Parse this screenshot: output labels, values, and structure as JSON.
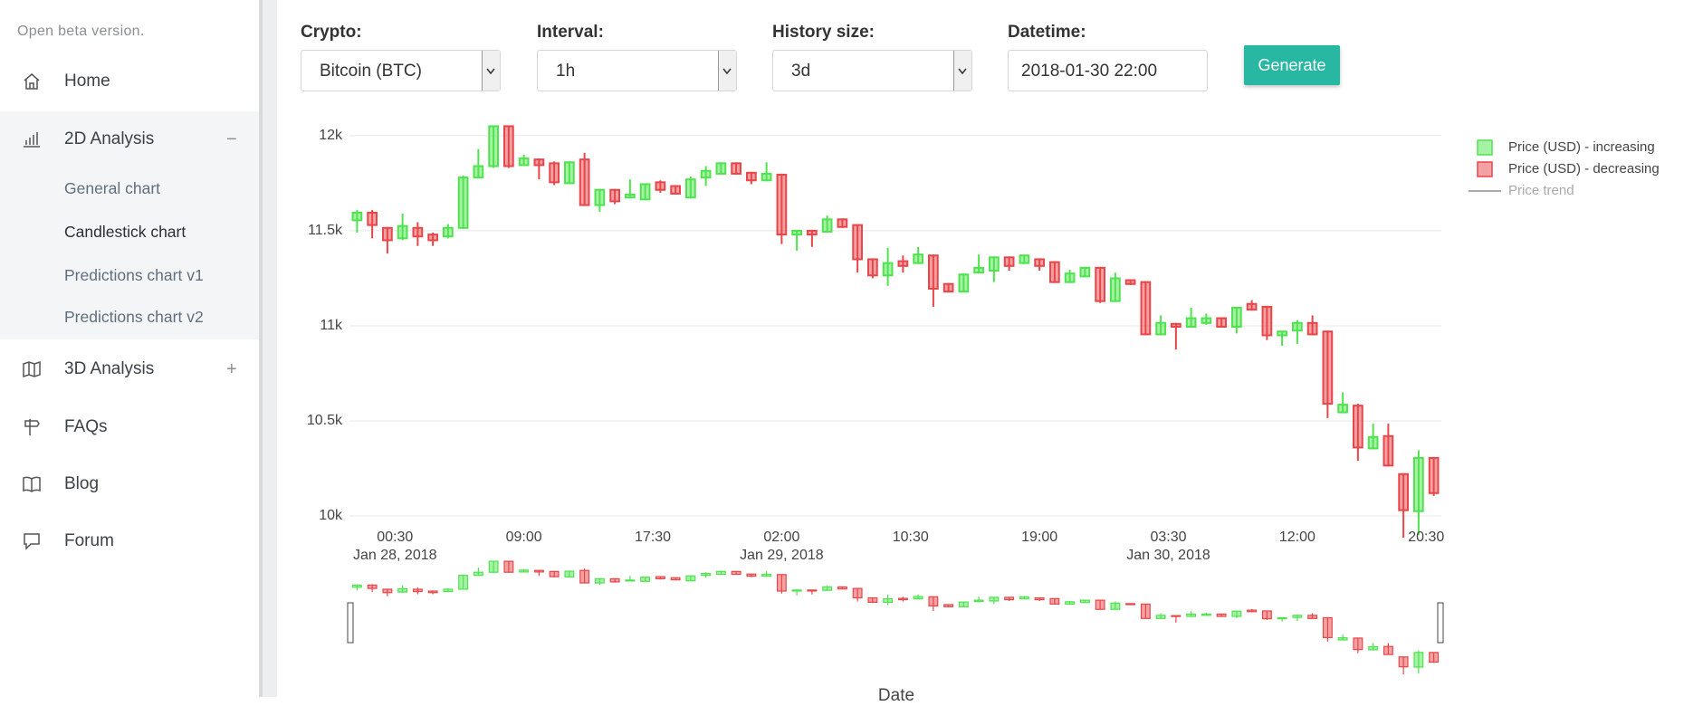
{
  "sidebar": {
    "notice": "Open beta version.",
    "menu": [
      {
        "label": "Home"
      },
      {
        "label": "2D Analysis",
        "toggle": "−",
        "items": [
          "General chart",
          "Candlestick chart",
          "Predictions chart v1",
          "Predictions chart v2"
        ]
      },
      {
        "label": "3D Analysis",
        "toggle": "+"
      },
      {
        "label": "FAQs"
      },
      {
        "label": "Blog"
      },
      {
        "label": "Forum"
      }
    ]
  },
  "form": {
    "fields": [
      {
        "label": "Crypto:",
        "value": "Bitcoin (BTC)"
      },
      {
        "label": "Interval:",
        "value": "1h"
      },
      {
        "label": "History size:",
        "value": "3d"
      },
      {
        "label": "Datetime:",
        "value": "2018-01-30 22:00"
      }
    ],
    "button": "Generate"
  },
  "chart_data": {
    "type": "candlestick",
    "xlabel": "Date",
    "x": [
      "2018-01-27T22:00",
      "2018-01-27T23:00",
      "2018-01-28T00:00",
      "2018-01-28T01:00",
      "2018-01-28T02:00",
      "2018-01-28T03:00",
      "2018-01-28T04:00",
      "2018-01-28T05:00",
      "2018-01-28T06:00",
      "2018-01-28T07:00",
      "2018-01-28T08:00",
      "2018-01-28T09:00",
      "2018-01-28T10:00",
      "2018-01-28T11:00",
      "2018-01-28T12:00",
      "2018-01-28T13:00",
      "2018-01-28T14:00",
      "2018-01-28T15:00",
      "2018-01-28T16:00",
      "2018-01-28T17:00",
      "2018-01-28T18:00",
      "2018-01-28T19:00",
      "2018-01-28T20:00",
      "2018-01-28T21:00",
      "2018-01-28T22:00",
      "2018-01-28T23:00",
      "2018-01-29T00:00",
      "2018-01-29T01:00",
      "2018-01-29T02:00",
      "2018-01-29T03:00",
      "2018-01-29T04:00",
      "2018-01-29T05:00",
      "2018-01-29T06:00",
      "2018-01-29T07:00",
      "2018-01-29T08:00",
      "2018-01-29T09:00",
      "2018-01-29T10:00",
      "2018-01-29T11:00",
      "2018-01-29T12:00",
      "2018-01-29T13:00",
      "2018-01-29T14:00",
      "2018-01-29T15:00",
      "2018-01-29T16:00",
      "2018-01-29T17:00",
      "2018-01-29T18:00",
      "2018-01-29T19:00",
      "2018-01-29T20:00",
      "2018-01-29T21:00",
      "2018-01-29T22:00",
      "2018-01-29T23:00",
      "2018-01-30T00:00",
      "2018-01-30T01:00",
      "2018-01-30T02:00",
      "2018-01-30T03:00",
      "2018-01-30T04:00",
      "2018-01-30T05:00",
      "2018-01-30T06:00",
      "2018-01-30T07:00",
      "2018-01-30T08:00",
      "2018-01-30T09:00",
      "2018-01-30T10:00",
      "2018-01-30T11:00",
      "2018-01-30T12:00",
      "2018-01-30T13:00",
      "2018-01-30T14:00",
      "2018-01-30T15:00",
      "2018-01-30T16:00",
      "2018-01-30T17:00",
      "2018-01-30T18:00",
      "2018-01-30T19:00",
      "2018-01-30T20:00",
      "2018-01-30T21:00"
    ],
    "open": [
      11555,
      11595,
      11515,
      11460,
      11515,
      11480,
      11470,
      11515,
      11780,
      11840,
      12050,
      11845,
      11875,
      11855,
      11750,
      11875,
      11635,
      11715,
      11675,
      11665,
      11755,
      11735,
      11675,
      11780,
      11800,
      11855,
      11805,
      11765,
      11795,
      11480,
      11500,
      11495,
      11560,
      11530,
      11350,
      11265,
      11340,
      11330,
      11370,
      11220,
      11180,
      11280,
      11290,
      11360,
      11330,
      11350,
      11335,
      11230,
      11260,
      11305,
      11130,
      11240,
      11230,
      10955,
      11010,
      10995,
      11015,
      11040,
      10995,
      11115,
      11100,
      10950,
      10975,
      11015,
      10970,
      10545,
      10580,
      10355,
      10420,
      10220,
      10025,
      10305
    ],
    "high": [
      11610,
      11610,
      11520,
      11590,
      11545,
      11490,
      11535,
      11790,
      11930,
      12050,
      12050,
      11900,
      11880,
      11865,
      11865,
      11910,
      11720,
      11720,
      11770,
      11750,
      11765,
      11740,
      11785,
      11840,
      11860,
      11860,
      11810,
      11860,
      11800,
      11505,
      11505,
      11580,
      11565,
      11535,
      11355,
      11410,
      11370,
      11415,
      11375,
      11225,
      11275,
      11375,
      11365,
      11365,
      11375,
      11355,
      11340,
      11295,
      11310,
      11310,
      11280,
      11245,
      11235,
      11055,
      11015,
      11095,
      11065,
      11045,
      11100,
      11135,
      11105,
      10975,
      11030,
      11055,
      10975,
      10650,
      10590,
      10485,
      10485,
      10225,
      10345,
      10310
    ],
    "low": [
      11490,
      11460,
      11380,
      11450,
      11420,
      11420,
      11460,
      11510,
      11775,
      11830,
      11830,
      11840,
      11770,
      11740,
      11745,
      11630,
      11600,
      11640,
      11670,
      11660,
      11700,
      11690,
      11670,
      11735,
      11795,
      11795,
      11745,
      11760,
      11430,
      11395,
      11415,
      11490,
      11515,
      11280,
      11250,
      11210,
      11280,
      11325,
      11100,
      11175,
      11175,
      11275,
      11230,
      11290,
      11325,
      11290,
      11225,
      11225,
      11255,
      11120,
      11125,
      11215,
      10950,
      10950,
      10875,
      10990,
      11005,
      10990,
      10960,
      11080,
      10925,
      10895,
      10905,
      10950,
      10515,
      10540,
      10290,
      10350,
      10260,
      9885,
      9900,
      10105
    ],
    "close": [
      11595,
      11530,
      11450,
      11525,
      11470,
      11450,
      11515,
      11780,
      11840,
      12050,
      11840,
      11880,
      11845,
      11755,
      11860,
      11635,
      11715,
      11655,
      11690,
      11745,
      11715,
      11695,
      11770,
      11815,
      11855,
      11800,
      11765,
      11800,
      11480,
      11500,
      11480,
      11560,
      11520,
      11350,
      11265,
      11330,
      11315,
      11375,
      11195,
      11180,
      11270,
      11305,
      11360,
      11315,
      11370,
      11315,
      11230,
      11275,
      11305,
      11130,
      11250,
      11220,
      10955,
      11015,
      10995,
      11040,
      11040,
      10995,
      11095,
      11085,
      10950,
      10970,
      11015,
      10955,
      10590,
      10585,
      10360,
      10415,
      10265,
      10030,
      10305,
      10120
    ],
    "increasing": {
      "name": "Price (USD) - increasing",
      "color": "#4fe34f"
    },
    "decreasing": {
      "name": "Price (USD) - decreasing",
      "color": "#e8464a"
    },
    "trend": {
      "name": "Price trend",
      "color": "#888888",
      "visible": false
    },
    "xlim": [
      "2018-01-27T21:30",
      "2018-01-30T21:30"
    ],
    "xticks": [
      {
        "value": "2018-01-28T00:30",
        "label": "00:30\nJan 28, 2018"
      },
      {
        "value": "2018-01-28T09:00",
        "label": "09:00"
      },
      {
        "value": "2018-01-28T17:30",
        "label": "17:30"
      },
      {
        "value": "2018-01-29T02:00",
        "label": "02:00\nJan 29, 2018"
      },
      {
        "value": "2018-01-29T10:30",
        "label": "10:30"
      },
      {
        "value": "2018-01-29T19:00",
        "label": "19:00"
      },
      {
        "value": "2018-01-30T03:30",
        "label": "03:30\nJan 30, 2018"
      },
      {
        "value": "2018-01-30T12:00",
        "label": "12:00"
      },
      {
        "value": "2018-01-30T20:30",
        "label": "20:30"
      }
    ],
    "ylim": [
      9800,
      12190
    ],
    "yticks": [
      {
        "value": 10000,
        "label": "10k"
      },
      {
        "value": 10500,
        "label": "10.5k"
      },
      {
        "value": 11000,
        "label": "11k"
      },
      {
        "value": 11500,
        "label": "11.5k"
      },
      {
        "value": 12000,
        "label": "12k"
      }
    ],
    "grid": true,
    "rangeslider": true
  }
}
